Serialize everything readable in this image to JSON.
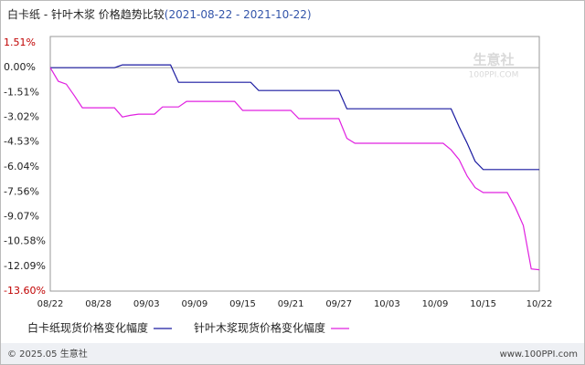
{
  "chart_data": {
    "type": "line",
    "title": "白卡纸 - 针叶木浆 价格趋势比较",
    "subtitle": "(2021-08-22 - 2021-10-22)",
    "categories": [
      "08/22",
      null,
      null,
      null,
      null,
      null,
      "08/28",
      null,
      null,
      null,
      null,
      null,
      "09/03",
      null,
      null,
      null,
      null,
      null,
      "09/09",
      null,
      null,
      null,
      null,
      null,
      "09/15",
      null,
      null,
      null,
      null,
      null,
      "09/21",
      null,
      null,
      null,
      null,
      null,
      "09/27",
      null,
      null,
      null,
      null,
      null,
      "10/03",
      null,
      null,
      null,
      null,
      null,
      "10/09",
      null,
      null,
      null,
      null,
      null,
      "10/15",
      null,
      null,
      null,
      null,
      null,
      null,
      "10/22"
    ],
    "series": [
      {
        "name": "白卡纸现货价格变化幅度",
        "color": "#1a1aa0",
        "values": [
          0,
          0,
          0,
          0,
          0,
          0,
          0,
          0,
          0,
          0.17,
          0.17,
          0.17,
          0.17,
          0.17,
          0.17,
          0.17,
          -0.89,
          -0.89,
          -0.89,
          -0.89,
          -0.89,
          -0.89,
          -0.89,
          -0.89,
          -0.89,
          -0.89,
          -1.39,
          -1.39,
          -1.39,
          -1.39,
          -1.39,
          -1.39,
          -1.39,
          -1.39,
          -1.39,
          -1.39,
          -1.39,
          -2.5,
          -2.5,
          -2.5,
          -2.5,
          -2.5,
          -2.5,
          -2.5,
          -2.5,
          -2.5,
          -2.5,
          -2.5,
          -2.5,
          -2.5,
          -2.5,
          -3.6,
          -4.6,
          -5.7,
          -6.2,
          -6.2,
          -6.2,
          -6.2,
          -6.2,
          -6.2,
          -6.2,
          -6.2
        ]
      },
      {
        "name": "针叶木浆现货价格变化幅度",
        "color": "#e020e0",
        "values": [
          0,
          -0.83,
          -1.0,
          -1.7,
          -2.44,
          -2.44,
          -2.44,
          -2.44,
          -2.44,
          -3.0,
          -2.9,
          -2.83,
          -2.83,
          -2.83,
          -2.39,
          -2.39,
          -2.39,
          -2.05,
          -2.05,
          -2.05,
          -2.05,
          -2.05,
          -2.05,
          -2.05,
          -2.6,
          -2.6,
          -2.6,
          -2.6,
          -2.6,
          -2.6,
          -2.6,
          -3.1,
          -3.1,
          -3.1,
          -3.1,
          -3.1,
          -3.1,
          -4.3,
          -4.6,
          -4.6,
          -4.6,
          -4.6,
          -4.6,
          -4.6,
          -4.6,
          -4.6,
          -4.6,
          -4.6,
          -4.6,
          -4.6,
          -5.0,
          -5.6,
          -6.6,
          -7.3,
          -7.6,
          -7.6,
          -7.6,
          -7.6,
          -8.5,
          -9.6,
          -12.25,
          -12.3
        ]
      }
    ],
    "ylim": [
      -13.6,
      1.51
    ],
    "yticks": [
      {
        "value": 1.51,
        "label": "1.51%"
      },
      {
        "value": 0,
        "label": "0.00%"
      },
      {
        "value": -1.51,
        "label": "-1.51%"
      },
      {
        "value": -3.02,
        "label": "-3.02%"
      },
      {
        "value": -4.53,
        "label": "-4.53%"
      },
      {
        "value": -6.04,
        "label": "-6.04%"
      },
      {
        "value": -7.56,
        "label": "-7.56%"
      },
      {
        "value": -9.07,
        "label": "-9.07%"
      },
      {
        "value": -10.58,
        "label": "-10.58%"
      },
      {
        "value": -12.09,
        "label": "-12.09%"
      },
      {
        "value": -13.6,
        "label": "-13.60%"
      }
    ],
    "watermark": {
      "name": "生意社",
      "site": "100PPI.COM"
    },
    "footer": {
      "left": "© 2025.05 生意社",
      "right": "www.100PPI.com"
    }
  }
}
